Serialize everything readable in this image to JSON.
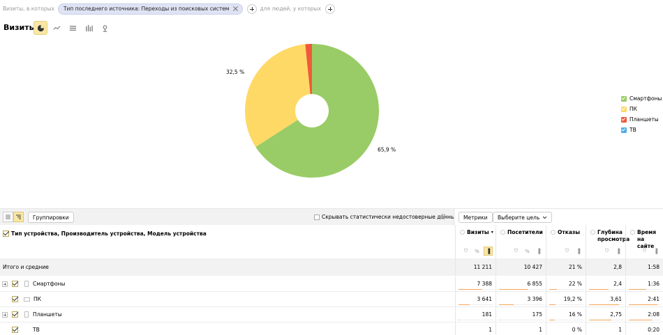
{
  "filters": {
    "prefix": "Визиты, в которых",
    "chip_label": "Тип последнего источника: Переходы из поисковых систем",
    "suffix": "для людей, у которых"
  },
  "report": {
    "title": "Визиты",
    "chart_types": [
      "pie-chart-icon",
      "line-chart-icon",
      "area-chart-icon",
      "bar-chart-icon",
      "map-icon"
    ],
    "active_chart": "pie-chart-icon"
  },
  "chart_data": {
    "type": "pie",
    "donut": true,
    "categories": [
      "Смартфоны",
      "ПК",
      "Планшеты",
      "ТВ"
    ],
    "values": [
      65.9,
      32.5,
      1.6,
      0.0
    ],
    "colors": [
      "#99cc66",
      "#ffd966",
      "#f05a3b",
      "#4eaee8"
    ],
    "data_labels": [
      "65,9 %",
      "32,5 %",
      "",
      ""
    ],
    "legend_position": "right"
  },
  "toolbar": {
    "groupings_label": "Группировки",
    "hide_unreliable_label": "Скрывать статистически недостоверные данные",
    "metrics_label": "Метрики",
    "select_goal_label": "Выберите цель"
  },
  "table": {
    "dimension_header": "Тип устройства, Производитель устройства, Модель устройства",
    "columns": [
      {
        "title": "Визиты",
        "sorted": "▾"
      },
      {
        "title": "Посетители"
      },
      {
        "title": "Отказы"
      },
      {
        "title": "Глубина просмотра"
      },
      {
        "title": "Время на сайте"
      }
    ],
    "total": {
      "label": "Итого и средние",
      "values": [
        "11 211",
        "10 427",
        "21 %",
        "2,8",
        "1:58"
      ]
    },
    "rows": [
      {
        "label": "Смартфоны",
        "values": [
          "7 388",
          "6 855",
          "22 %",
          "2,4",
          "1:36"
        ],
        "shares": [
          0.659,
          0.657,
          0.22,
          0.58,
          0.55
        ],
        "expandable": true,
        "icon": "smartphone-icon"
      },
      {
        "label": "ПК",
        "values": [
          "3 641",
          "3 396",
          "19,2 %",
          "3,61",
          "2:41"
        ],
        "shares": [
          0.325,
          0.326,
          0.19,
          0.87,
          0.9
        ],
        "expandable": false,
        "icon": "desktop-icon"
      },
      {
        "label": "Планшеты",
        "values": [
          "181",
          "175",
          "16 %",
          "2,75",
          "2:08"
        ],
        "shares": [
          0.016,
          0.017,
          0.16,
          0.66,
          0.72
        ],
        "expandable": true,
        "icon": "tablet-icon"
      },
      {
        "label": "ТВ",
        "values": [
          "1",
          "1",
          "0 %",
          "1",
          "0:20"
        ],
        "shares": [
          0.0,
          0.0,
          0.0,
          0.24,
          0.11
        ],
        "expandable": false,
        "icon": ""
      }
    ]
  }
}
